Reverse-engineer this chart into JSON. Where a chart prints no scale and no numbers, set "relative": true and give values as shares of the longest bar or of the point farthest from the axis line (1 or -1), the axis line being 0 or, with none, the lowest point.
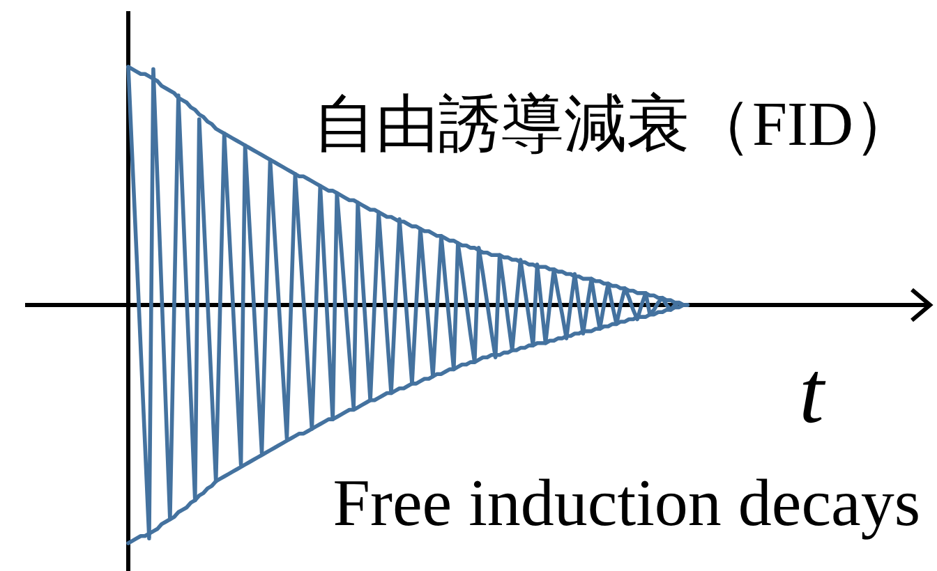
{
  "chart_data": {
    "type": "line",
    "title": "自由誘導減衰（FID）",
    "xlabel": "t",
    "annotations": [
      "Free induction decays"
    ],
    "relative": true,
    "categories": [
      null,
      null,
      null,
      null,
      null,
      null,
      null,
      null,
      null,
      null,
      null,
      null,
      null,
      null,
      null,
      null,
      null,
      null,
      null,
      null,
      null,
      null,
      null,
      null,
      null,
      null,
      null,
      null,
      null,
      null,
      null,
      null,
      null,
      null,
      null,
      null,
      null,
      null,
      null,
      null,
      null,
      null,
      null,
      null,
      null,
      null,
      null,
      null,
      null,
      null,
      null,
      null,
      null,
      null,
      null,
      null,
      null,
      null,
      null,
      null,
      null,
      null,
      null,
      null,
      null,
      null,
      null,
      null,
      null,
      null,
      null,
      null,
      null,
      null,
      null,
      null,
      null,
      null,
      null,
      null,
      null,
      null,
      null,
      null,
      null,
      null,
      null,
      null,
      null,
      null,
      null,
      null,
      null,
      null,
      null,
      null,
      null,
      null,
      null,
      null,
      null,
      null,
      null,
      null,
      null,
      null,
      null,
      null,
      null,
      null,
      null,
      null,
      null,
      null,
      null,
      null,
      null,
      null,
      null,
      null,
      null,
      null,
      null,
      null,
      null,
      null,
      null,
      null,
      null,
      null,
      null,
      null,
      null,
      null,
      null
    ],
    "series": [
      {
        "color": "#44729f",
        "values": [
          1.0,
          0.6,
          0.21,
          -0.19,
          -0.58,
          -0.98,
          0.99,
          0.52,
          0.05,
          -0.43,
          -0.9,
          -0.01,
          0.88,
          0.46,
          0.03,
          -0.39,
          -0.82,
          0.78,
          0.4,
          0.02,
          -0.36,
          -0.74,
          -0.01,
          0.72,
          0.37,
          0.03,
          -0.32,
          -0.67,
          0.67,
          0.35,
          0.03,
          -0.3,
          -0.62,
          0.0,
          0.61,
          0.32,
          0.03,
          -0.27,
          -0.56,
          0.0,
          0.55,
          0.28,
          0.02,
          -0.25,
          -0.52,
          -0.01,
          0.5,
          0.17,
          -0.15,
          -0.48,
          0.47,
          0.25,
          0.02,
          -0.21,
          -0.43,
          0.43,
          0.15,
          -0.12,
          -0.4,
          0.0,
          0.39,
          0.14,
          -0.12,
          -0.37,
          0.0,
          0.36,
          0.13,
          -0.1,
          -0.33,
          0.0,
          0.32,
          0.11,
          -0.09,
          -0.3,
          0.0,
          0.29,
          0.1,
          -0.08,
          -0.27,
          0.26,
          0.14,
          0.01,
          -0.12,
          -0.24,
          0.24,
          0.13,
          0.01,
          -0.11,
          -0.22,
          0.21,
          0.08,
          -0.06,
          -0.19,
          0.0,
          0.19,
          0.07,
          -0.05,
          -0.17,
          0.17,
          0.0,
          -0.16,
          0.0,
          0.15,
          0.05,
          -0.04,
          -0.14,
          0.0,
          0.13,
          0.0,
          -0.12,
          0.0,
          0.11,
          0.0,
          -0.1,
          0.0,
          0.09,
          0.0,
          -0.08,
          0.0,
          0.07,
          0.03,
          -0.02,
          -0.06,
          0.0,
          0.05,
          -0.04,
          -0.02,
          0.01,
          0.03,
          0.0,
          -0.02,
          0.0,
          0.01,
          0.0,
          0
        ]
      },
      {
        "color": "#44729f",
        "values": [
          1.0,
          0.99,
          0.98,
          0.97,
          0.97,
          0.96,
          0.95,
          0.94,
          0.92,
          0.91,
          0.9,
          0.89,
          0.87,
          0.86,
          0.85,
          0.83,
          0.82,
          0.8,
          0.79,
          0.77,
          0.76,
          0.74,
          0.73,
          0.72,
          0.71,
          0.7,
          0.69,
          0.68,
          0.67,
          0.66,
          0.65,
          0.64,
          0.63,
          0.62,
          0.61,
          0.6,
          0.59,
          0.58,
          0.57,
          0.56,
          0.55,
          0.54,
          0.54,
          0.53,
          0.52,
          0.51,
          0.5,
          0.49,
          0.48,
          0.48,
          0.47,
          0.46,
          0.45,
          0.44,
          0.44,
          0.43,
          0.42,
          0.41,
          0.4,
          0.4,
          0.39,
          0.38,
          0.37,
          0.37,
          0.36,
          0.35,
          0.35,
          0.34,
          0.33,
          0.33,
          0.32,
          0.31,
          0.31,
          0.3,
          0.29,
          0.29,
          0.28,
          0.27,
          0.27,
          0.26,
          0.25,
          0.25,
          0.24,
          0.24,
          0.23,
          0.22,
          0.22,
          0.21,
          0.21,
          0.21,
          0.2,
          0.2,
          0.19,
          0.19,
          0.18,
          0.18,
          0.17,
          0.17,
          0.16,
          0.16,
          0.16,
          0.15,
          0.15,
          0.14,
          0.14,
          0.13,
          0.13,
          0.12,
          0.12,
          0.11,
          0.11,
          0.11,
          0.1,
          0.1,
          0.09,
          0.09,
          0.08,
          0.08,
          0.07,
          0.07,
          0.06,
          0.06,
          0.05,
          0.05,
          0.05,
          0.04,
          0.04,
          0.03,
          0.03,
          0.02,
          0.02,
          0.01,
          0.01,
          0.0,
          0
        ]
      },
      {
        "color": "#44729f",
        "values": [
          -1.0,
          -0.99,
          -0.98,
          -0.97,
          -0.97,
          -0.96,
          -0.95,
          -0.94,
          -0.92,
          -0.91,
          -0.9,
          -0.89,
          -0.87,
          -0.86,
          -0.85,
          -0.83,
          -0.82,
          -0.8,
          -0.79,
          -0.77,
          -0.76,
          -0.74,
          -0.73,
          -0.72,
          -0.71,
          -0.7,
          -0.69,
          -0.68,
          -0.67,
          -0.66,
          -0.65,
          -0.64,
          -0.63,
          -0.62,
          -0.61,
          -0.6,
          -0.59,
          -0.58,
          -0.57,
          -0.56,
          -0.55,
          -0.54,
          -0.54,
          -0.53,
          -0.52,
          -0.51,
          -0.5,
          -0.49,
          -0.48,
          -0.48,
          -0.47,
          -0.46,
          -0.45,
          -0.44,
          -0.44,
          -0.43,
          -0.42,
          -0.41,
          -0.4,
          -0.4,
          -0.39,
          -0.38,
          -0.37,
          -0.37,
          -0.36,
          -0.35,
          -0.35,
          -0.34,
          -0.33,
          -0.33,
          -0.32,
          -0.31,
          -0.31,
          -0.3,
          -0.29,
          -0.29,
          -0.28,
          -0.27,
          -0.27,
          -0.26,
          -0.25,
          -0.25,
          -0.24,
          -0.24,
          -0.23,
          -0.22,
          -0.22,
          -0.21,
          -0.21,
          -0.21,
          -0.2,
          -0.2,
          -0.19,
          -0.19,
          -0.18,
          -0.18,
          -0.17,
          -0.17,
          -0.16,
          -0.16,
          -0.16,
          -0.15,
          -0.15,
          -0.14,
          -0.14,
          -0.13,
          -0.13,
          -0.12,
          -0.12,
          -0.11,
          -0.11,
          -0.11,
          -0.1,
          -0.1,
          -0.09,
          -0.09,
          -0.08,
          -0.08,
          -0.07,
          -0.07,
          -0.06,
          -0.06,
          -0.05,
          -0.05,
          -0.05,
          -0.04,
          -0.04,
          -0.03,
          -0.03,
          -0.02,
          -0.02,
          -0.01,
          -0.01,
          0.0,
          0
        ]
      }
    ]
  }
}
